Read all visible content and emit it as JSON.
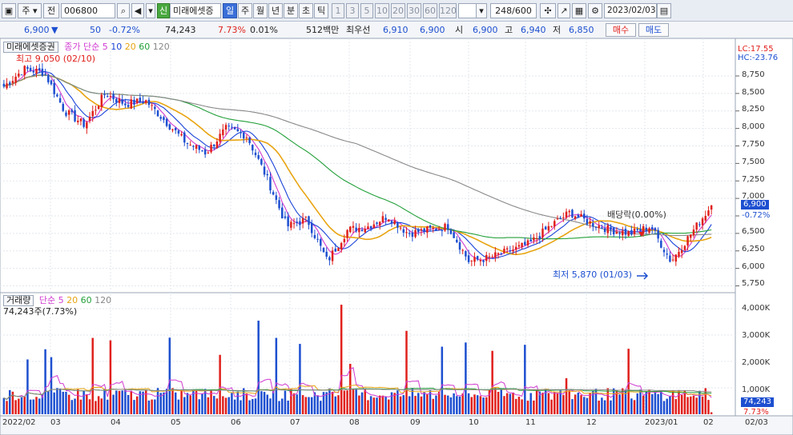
{
  "toolbar": {
    "market": "주",
    "period_mode": "전",
    "code": "006800",
    "new_badge": "신",
    "stock_name": "미래에셋증",
    "tabs": [
      "일",
      "주",
      "월",
      "년",
      "분",
      "초",
      "틱"
    ],
    "active_tab": "일",
    "numbers": [
      "1",
      "3",
      "5",
      "10",
      "20",
      "30",
      "60",
      "120"
    ],
    "count": "248/600",
    "date": "2023/02/03"
  },
  "quote": {
    "price": "6,900",
    "direction": "▼",
    "change": "50",
    "change_pct": "-0.72%",
    "volume": "74,243",
    "turnover_pct": "7.73%",
    "ratio_pct": "0.01%",
    "amount": "512백만",
    "best_label": "최우선",
    "bid": "6,910",
    "ask": "6,900",
    "open_label": "시",
    "open": "6,900",
    "high_label": "고",
    "high": "6,940",
    "low_label": "저",
    "low": "6,850",
    "buy_label": "매수",
    "sell_label": "매도"
  },
  "price_panel": {
    "name_label": "미래에셋증권",
    "ma_title": "종가 단순",
    "ma_periods": [
      "5",
      "10",
      "20",
      "60",
      "120"
    ],
    "ma_colors": [
      "#d03ad0",
      "#1a44d8",
      "#e8a411",
      "#23a03a",
      "#888888"
    ],
    "high_note": "최고 9,050 (02/10)",
    "low_note": "최저 5,870 (01/03)",
    "dividend_note": "배당락(0.00%)",
    "lc": "LC:17.55",
    "hc": "HC:-23.76",
    "last_price": "6,900",
    "last_pct": "-0.72%",
    "y_ticks": [
      "8,750",
      "8,500",
      "8,250",
      "8,000",
      "7,750",
      "7,500",
      "7,250",
      "7,000",
      "6,500",
      "6,250",
      "6,000",
      "5,750"
    ]
  },
  "volume_panel": {
    "title": "거래량",
    "ma_title": "단순",
    "ma_periods": [
      "5",
      "20",
      "60",
      "120"
    ],
    "volume_note": "74,243주(7.73%)",
    "last_volume": "74,243",
    "last_pct": "7.73%",
    "y_ticks": [
      "4,000K",
      "3,000K",
      "2,000K",
      "1,000K"
    ]
  },
  "x_labels": [
    "2022/02",
    "03",
    "04",
    "05",
    "06",
    "07",
    "08",
    "09",
    "10",
    "11",
    "12",
    "2023/01",
    "02",
    "02/03"
  ],
  "chart_data": {
    "type": "candlestick",
    "x_range": [
      "2022/02",
      "2023/02/03"
    ],
    "price_ylim": [
      5750,
      8750
    ],
    "volume_ylim": [
      0,
      4000000
    ],
    "close_anchors": [
      8600,
      8850,
      8800,
      8250,
      8050,
      8500,
      8350,
      8400,
      8100,
      7800,
      7650,
      8000,
      7900,
      7300,
      6600,
      6700,
      6100,
      6550,
      6600,
      6750,
      6500,
      6550,
      6600,
      6100,
      6150,
      6250,
      6350,
      6600,
      6800,
      6650,
      6550,
      6500,
      6600,
      6100,
      6500,
      6900
    ],
    "last_price": 6900,
    "period_high": 9050,
    "period_low": 5870
  }
}
